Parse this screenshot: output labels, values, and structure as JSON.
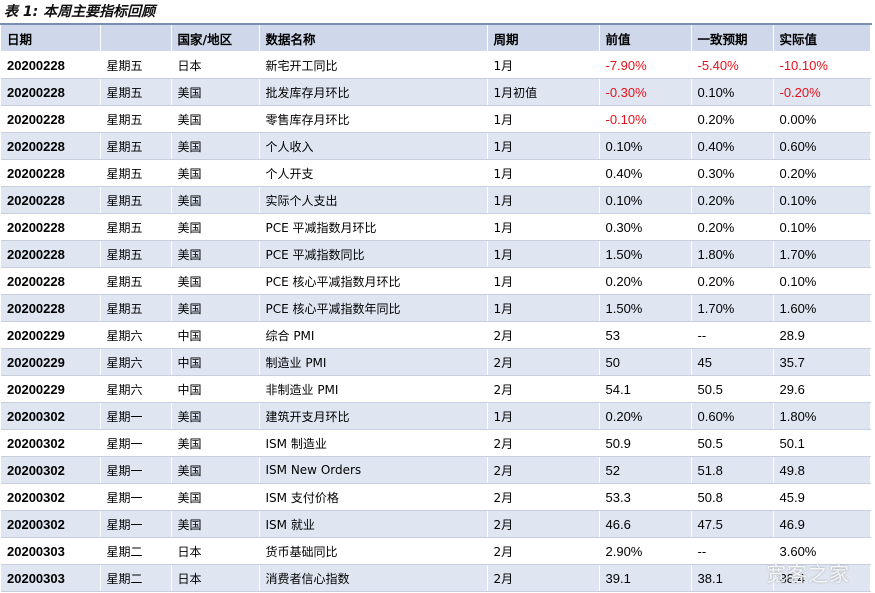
{
  "title": "表 1: 本周主要指标回顾",
  "headers": [
    "日期",
    "",
    "国家/地区",
    "数据名称",
    "周期",
    "前值",
    "一致预期",
    "实际值"
  ],
  "rows": [
    [
      "20200228",
      "星期五",
      "日本",
      "新宅开工同比",
      "1月",
      "-7.90%",
      "-5.40%",
      "-10.10%"
    ],
    [
      "20200228",
      "星期五",
      "美国",
      "批发库存月环比",
      "1月初值",
      "-0.30%",
      "0.10%",
      "-0.20%"
    ],
    [
      "20200228",
      "星期五",
      "美国",
      "零售库存月环比",
      "1月",
      "-0.10%",
      "0.20%",
      "0.00%"
    ],
    [
      "20200228",
      "星期五",
      "美国",
      "个人收入",
      "1月",
      "0.10%",
      "0.40%",
      "0.60%"
    ],
    [
      "20200228",
      "星期五",
      "美国",
      "个人开支",
      "1月",
      "0.40%",
      "0.30%",
      "0.20%"
    ],
    [
      "20200228",
      "星期五",
      "美国",
      "实际个人支出",
      "1月",
      "0.10%",
      "0.20%",
      "0.10%"
    ],
    [
      "20200228",
      "星期五",
      "美国",
      "PCE 平减指数月环比",
      "1月",
      "0.30%",
      "0.20%",
      "0.10%"
    ],
    [
      "20200228",
      "星期五",
      "美国",
      "PCE 平减指数同比",
      "1月",
      "1.50%",
      "1.80%",
      "1.70%"
    ],
    [
      "20200228",
      "星期五",
      "美国",
      "PCE 核心平减指数月环比",
      "1月",
      "0.20%",
      "0.20%",
      "0.10%"
    ],
    [
      "20200228",
      "星期五",
      "美国",
      "PCE 核心平减指数年同比",
      "1月",
      "1.50%",
      "1.70%",
      "1.60%"
    ],
    [
      "20200229",
      "星期六",
      "中国",
      "综合 PMI",
      "2月",
      "53",
      "--",
      "28.9"
    ],
    [
      "20200229",
      "星期六",
      "中国",
      "制造业 PMI",
      "2月",
      "50",
      "45",
      "35.7"
    ],
    [
      "20200229",
      "星期六",
      "中国",
      "非制造业 PMI",
      "2月",
      "54.1",
      "50.5",
      "29.6"
    ],
    [
      "20200302",
      "星期一",
      "美国",
      "建筑开支月环比",
      "1月",
      "0.20%",
      "0.60%",
      "1.80%"
    ],
    [
      "20200302",
      "星期一",
      "美国",
      "ISM 制造业",
      "2月",
      "50.9",
      "50.5",
      "50.1"
    ],
    [
      "20200302",
      "星期一",
      "美国",
      "ISM New Orders",
      "2月",
      "52",
      "51.8",
      "49.8"
    ],
    [
      "20200302",
      "星期一",
      "美国",
      "ISM 支付价格",
      "2月",
      "53.3",
      "50.8",
      "45.9"
    ],
    [
      "20200302",
      "星期一",
      "美国",
      "ISM 就业",
      "2月",
      "46.6",
      "47.5",
      "46.9"
    ],
    [
      "20200303",
      "星期二",
      "日本",
      "货币基础同比",
      "2月",
      "2.90%",
      "--",
      "3.60%"
    ],
    [
      "20200303",
      "星期二",
      "日本",
      "消费者信心指数",
      "2月",
      "39.1",
      "38.1",
      "38.4"
    ]
  ],
  "watermark": "宽客之家",
  "colors": {
    "header_bg": "#cfd8ea",
    "stripe_bg": "#dfe6f2",
    "negative": "#e8101a"
  }
}
